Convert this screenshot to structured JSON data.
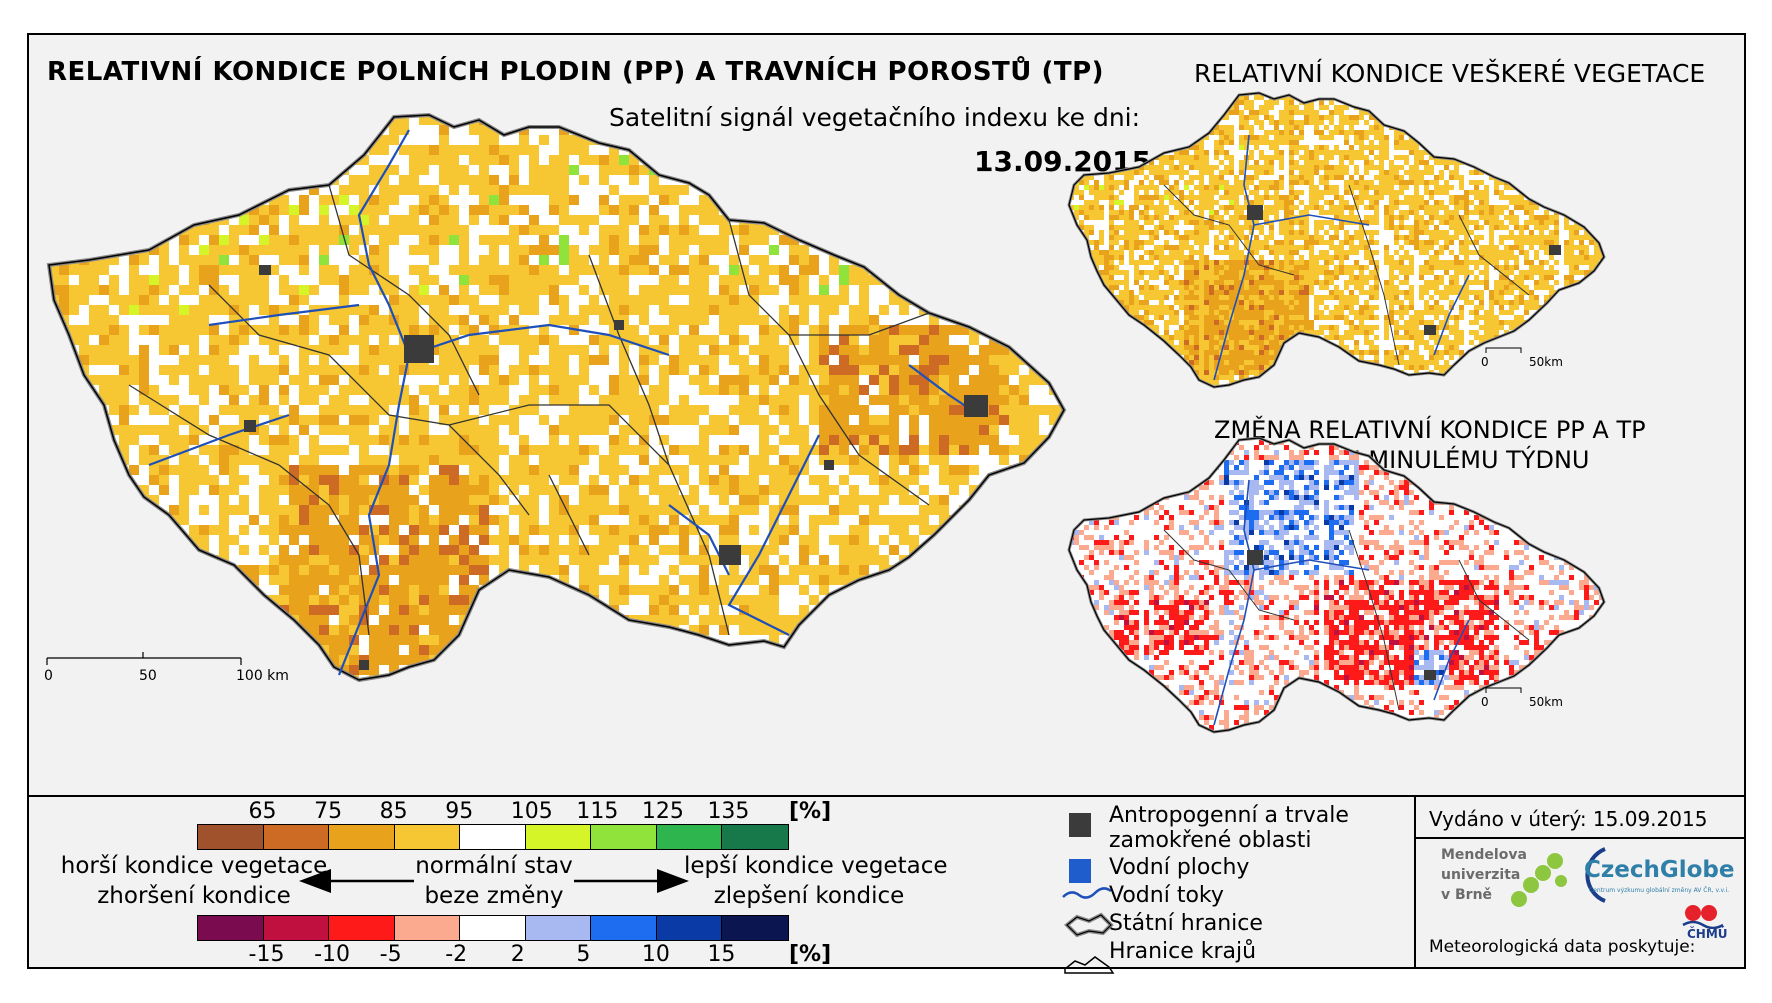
{
  "titles": {
    "main": "RELATIVNÍ KONDICE POLNÍCH PLODIN (PP) A TRAVNÍCH POROSTŮ (TP)",
    "subtitle": "Satelitní signál vegetačního indexu ke dni:",
    "date": "13.09.2015",
    "all_vegetation": "RELATIVNÍ KONDICE VEŠKERÉ VEGETACE",
    "change_line1": "ZMĚNA RELATIVNÍ KONDICE PP A TP",
    "change_line2": "OPROTI MINULÉMU TÝDNU"
  },
  "scale_bars": {
    "main": [
      "0",
      "50",
      "100 km"
    ],
    "small_top": [
      "0",
      "50km"
    ],
    "small_bottom": [
      "0",
      "50km"
    ]
  },
  "legend_condition": {
    "ticks": [
      "65",
      "75",
      "85",
      "95",
      "105",
      "115",
      "125",
      "135"
    ],
    "unit": "[%]",
    "colors": [
      "#a0522d",
      "#cd6a23",
      "#e8a21c",
      "#f6c733",
      "#ffffff",
      "#d6f529",
      "#8fe33a",
      "#2fb54d",
      "#17794a"
    ]
  },
  "legend_change": {
    "ticks": [
      "-15",
      "-10",
      "-5",
      "-2",
      "2",
      "5",
      "10",
      "15"
    ],
    "unit": "[%]",
    "colors": [
      "#7a0b4f",
      "#c0103f",
      "#ff1a1a",
      "#fbaa8f",
      "#ffffff",
      "#a8b8f0",
      "#1e6cf0",
      "#0a3aa6",
      "#0b1650"
    ]
  },
  "descriptions": {
    "worse_condition": "horší kondice vegetace",
    "worse_change": "zhoršení kondice",
    "normal_state": "normální stav",
    "no_change": "beze změny",
    "better_condition": "lepší kondice vegetace",
    "better_change": "zlepšení kondice"
  },
  "symbols": [
    {
      "label_1": "Antropogenní a trvale",
      "label_2": "zamokřené oblasti",
      "color": "#3b3b3b"
    },
    {
      "label_1": "Vodní plochy",
      "color": "#1f5ccc"
    },
    {
      "label_1": "Vodní toky",
      "color": "#1f4fb8"
    },
    {
      "label_1": "Státní hranice",
      "color": "#666666"
    },
    {
      "label_1": "Hranice krajů",
      "color": "#000000"
    }
  ],
  "footer": {
    "issued": "Vydáno v úterý: 15.09.2015",
    "mendel_1": "Mendelova",
    "mendel_2": "univerzita",
    "mendel_3": "v Brně",
    "czechglobe": "CzechGlobe",
    "czechglobe_sub": "Centrum výzkumu globální změny AV ČR, v.v.i.",
    "meteo": "Meteorologická data poskytuje:",
    "chmu": "ČHMÚ"
  }
}
